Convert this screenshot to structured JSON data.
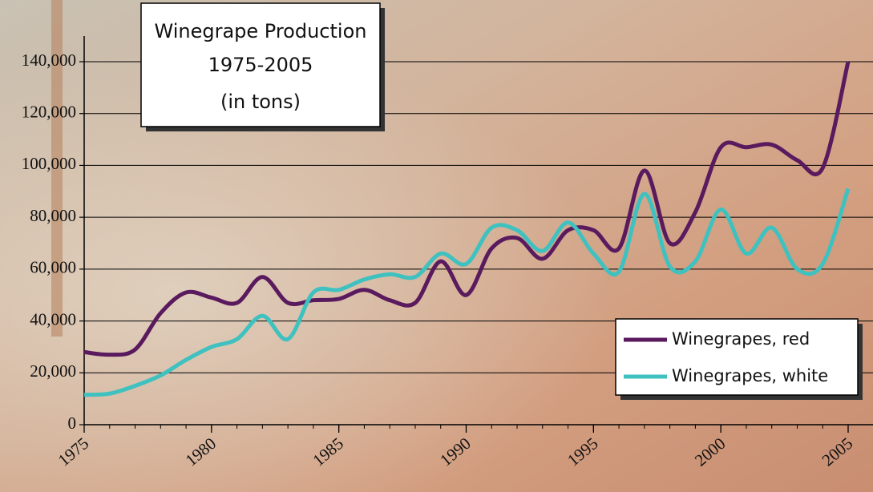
{
  "chart_data": {
    "type": "line",
    "title": [
      "Winegrape Production",
      "1975-2005",
      "(in tons)"
    ],
    "x": [
      1975,
      1976,
      1977,
      1978,
      1979,
      1980,
      1981,
      1982,
      1983,
      1984,
      1985,
      1986,
      1987,
      1988,
      1989,
      1990,
      1991,
      1992,
      1993,
      1994,
      1995,
      1996,
      1997,
      1998,
      1999,
      2000,
      2001,
      2002,
      2003,
      2004,
      2005
    ],
    "series": [
      {
        "name": "Winegrapes, red",
        "color": "#5a1a5e",
        "values": [
          28000,
          27000,
          29000,
          43000,
          51000,
          49000,
          47000,
          57000,
          47000,
          48000,
          48500,
          52000,
          48000,
          47000,
          63000,
          50000,
          68000,
          72000,
          64000,
          75000,
          75000,
          68000,
          98000,
          70000,
          82000,
          107000,
          107000,
          108000,
          102000,
          99000,
          140000
        ]
      },
      {
        "name": "Winegrapes, white",
        "color": "#3fc1bf",
        "values": [
          11500,
          12000,
          15000,
          19000,
          25000,
          30000,
          33000,
          42000,
          33000,
          51000,
          52000,
          56000,
          58000,
          57000,
          66000,
          62000,
          76000,
          75000,
          67000,
          78000,
          66000,
          59000,
          89000,
          61000,
          63000,
          83000,
          66000,
          76000,
          60000,
          62000,
          91000
        ]
      }
    ],
    "xlim": [
      1975,
      2005
    ],
    "xticks": [
      1975,
      1980,
      1985,
      1990,
      1995,
      2000,
      2005
    ],
    "ylim": [
      0,
      140000
    ],
    "yticks": [
      0,
      {
        "value": 20000,
        "label": "20,000"
      },
      {
        "value": 40000,
        "label": "40,000"
      },
      {
        "value": 60000,
        "label": "60,000"
      },
      {
        "value": 80000,
        "label": "80,000"
      },
      {
        "value": 100000,
        "label": "100,000"
      },
      {
        "value": 120000,
        "label": "120,000"
      },
      {
        "value": 140000,
        "label": "140,000"
      }
    ],
    "grid": true,
    "legend": "lower right"
  }
}
